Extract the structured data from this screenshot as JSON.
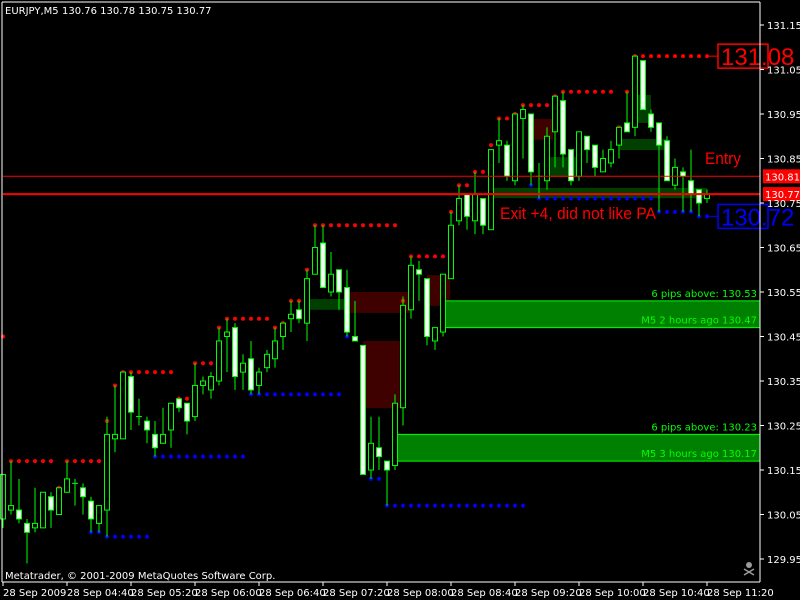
{
  "header": {
    "symbol": "EURJPY,M5",
    "ohlc": "130.76 130.78 130.75 130.77"
  },
  "footer": {
    "copyright": "Metatrader, © 2001-2009 MetaQuotes Software Corp."
  },
  "annotations": {
    "entry": "Entry",
    "exit": "Exit +4, did not like PA"
  },
  "colors": {
    "background": "#000000",
    "candle_outline": "#00ff00",
    "bear_fill": "#ffffff",
    "bull_fill": "#000000",
    "resistance": "#ff0000",
    "support": "#0000ff",
    "zone_dark_green": "#003f00",
    "zone_dark_red": "#3f0000",
    "zone_green": "#008000",
    "zone_green_border": "#00ff00",
    "price_line": "#ff0000"
  },
  "icons": {
    "skull": "skull-crossbones-icon"
  },
  "chart_data": {
    "type": "candlestick",
    "symbol": "EURJPY",
    "timeframe": "M5",
    "ylim": [
      129.92,
      131.2
    ],
    "y_ticks": [
      "131.15",
      "131.05",
      "130.95",
      "130.85",
      "130.75",
      "130.65",
      "130.55",
      "130.45",
      "130.35",
      "130.25",
      "130.15",
      "130.05",
      "129.95"
    ],
    "x_ticks": [
      {
        "bar": 0,
        "label": "28 Sep 2009"
      },
      {
        "bar": 8,
        "label": "28 Sep 04:40"
      },
      {
        "bar": 16,
        "label": "28 Sep 05:20"
      },
      {
        "bar": 24,
        "label": "28 Sep 06:00"
      },
      {
        "bar": 32,
        "label": "28 Sep 06:40"
      },
      {
        "bar": 40,
        "label": "28 Sep 07:20"
      },
      {
        "bar": 48,
        "label": "28 Sep 08:00"
      },
      {
        "bar": 56,
        "label": "28 Sep 08:40"
      },
      {
        "bar": 64,
        "label": "28 Sep 09:20"
      },
      {
        "bar": 72,
        "label": "28 Sep 10:00"
      },
      {
        "bar": 80,
        "label": "28 Sep 10:40"
      },
      {
        "bar": 88,
        "label": "28 Sep 11:20"
      }
    ],
    "candles_columns": [
      "time",
      "open",
      "high",
      "low",
      "close"
    ],
    "candles": [
      [
        "04:00",
        130.04,
        130.14,
        130.02,
        130.14
      ],
      [
        "04:05",
        130.06,
        130.17,
        130.05,
        130.07
      ],
      [
        "04:10",
        130.06,
        130.13,
        130.03,
        130.04
      ],
      [
        "04:15",
        130.03,
        130.04,
        129.94,
        130.01
      ],
      [
        "04:20",
        130.02,
        130.11,
        130.01,
        130.03
      ],
      [
        "04:25",
        130.02,
        130.1,
        130.02,
        130.1
      ],
      [
        "04:30",
        130.09,
        130.1,
        130.02,
        130.06
      ],
      [
        "04:35",
        130.05,
        130.11,
        130.05,
        130.11
      ],
      [
        "04:40",
        130.1,
        130.17,
        130.1,
        130.13
      ],
      [
        "04:45",
        130.12,
        130.13,
        130.07,
        130.12
      ],
      [
        "04:50",
        130.11,
        130.12,
        130.05,
        130.09
      ],
      [
        "04:55",
        130.08,
        130.09,
        130.01,
        130.04
      ],
      [
        "05:00",
        130.03,
        130.07,
        130.01,
        130.07
      ],
      [
        "05:05",
        130.06,
        130.27,
        130.0,
        130.23
      ],
      [
        "05:10",
        130.22,
        130.34,
        130.19,
        130.23
      ],
      [
        "05:15",
        130.22,
        130.37,
        130.22,
        130.37
      ],
      [
        "05:20",
        130.36,
        130.37,
        130.24,
        130.28
      ],
      [
        "05:25",
        130.27,
        130.31,
        130.25,
        130.27
      ],
      [
        "05:30",
        130.26,
        130.27,
        130.21,
        130.24
      ],
      [
        "05:35",
        130.23,
        130.26,
        130.18,
        130.2
      ],
      [
        "05:40",
        130.21,
        130.29,
        130.21,
        130.23
      ],
      [
        "05:45",
        130.24,
        130.3,
        130.2,
        130.3
      ],
      [
        "05:50",
        130.31,
        130.31,
        130.28,
        130.29
      ],
      [
        "05:55",
        130.3,
        130.3,
        130.23,
        130.26
      ],
      [
        "06:00",
        130.27,
        130.39,
        130.26,
        130.34
      ],
      [
        "06:05",
        130.34,
        130.36,
        130.32,
        130.35
      ],
      [
        "06:10",
        130.33,
        130.37,
        130.31,
        130.36
      ],
      [
        "06:15",
        130.35,
        130.47,
        130.34,
        130.44
      ],
      [
        "06:20",
        130.45,
        130.49,
        130.37,
        130.46
      ],
      [
        "06:25",
        130.47,
        130.48,
        130.33,
        130.36
      ],
      [
        "06:30",
        130.37,
        130.41,
        130.33,
        130.39
      ],
      [
        "06:35",
        130.4,
        130.44,
        130.32,
        130.33
      ],
      [
        "06:40",
        130.34,
        130.38,
        130.32,
        130.37
      ],
      [
        "06:45",
        130.38,
        130.42,
        130.37,
        130.41
      ],
      [
        "06:50",
        130.4,
        130.47,
        130.38,
        130.44
      ],
      [
        "06:55",
        130.45,
        130.48,
        130.42,
        130.48
      ],
      [
        "07:00",
        130.49,
        130.53,
        130.46,
        130.5
      ],
      [
        "07:05",
        130.51,
        130.53,
        130.48,
        130.49
      ],
      [
        "07:10",
        130.48,
        130.6,
        130.44,
        130.58
      ],
      [
        "07:15",
        130.59,
        130.7,
        130.59,
        130.65
      ],
      [
        "07:20",
        130.66,
        130.7,
        130.56,
        130.56
      ],
      [
        "07:25",
        130.55,
        130.64,
        130.54,
        130.59
      ],
      [
        "07:30",
        130.6,
        130.6,
        130.51,
        130.55
      ],
      [
        "07:35",
        130.56,
        130.6,
        130.45,
        130.46
      ],
      [
        "07:40",
        130.45,
        130.53,
        130.44,
        130.44
      ],
      [
        "07:45",
        130.43,
        130.43,
        130.14,
        130.14
      ],
      [
        "07:50",
        130.15,
        130.27,
        130.13,
        130.21
      ],
      [
        "07:55",
        130.2,
        130.27,
        130.15,
        130.18
      ],
      [
        "08:00",
        130.17,
        130.17,
        130.07,
        130.15
      ],
      [
        "08:05",
        130.16,
        130.32,
        130.15,
        130.3
      ],
      [
        "08:10",
        130.29,
        130.54,
        130.25,
        130.52
      ],
      [
        "08:15",
        130.51,
        130.63,
        130.49,
        130.61
      ],
      [
        "08:20",
        130.6,
        130.62,
        130.53,
        130.59
      ],
      [
        "08:25",
        130.58,
        130.58,
        130.43,
        130.45
      ],
      [
        "08:30",
        130.44,
        130.47,
        130.42,
        130.47
      ],
      [
        "08:35",
        130.46,
        130.59,
        130.45,
        130.59
      ],
      [
        "08:40",
        130.58,
        130.73,
        130.58,
        130.7
      ],
      [
        "08:45",
        130.71,
        130.79,
        130.7,
        130.76
      ],
      [
        "08:50",
        130.77,
        130.77,
        130.69,
        130.72
      ],
      [
        "08:55",
        130.71,
        130.82,
        130.68,
        130.77
      ],
      [
        "09:00",
        130.76,
        130.76,
        130.68,
        130.7
      ],
      [
        "09:05",
        130.69,
        130.87,
        130.69,
        130.87
      ],
      [
        "09:10",
        130.88,
        130.94,
        130.84,
        130.89
      ],
      [
        "09:15",
        130.88,
        130.89,
        130.8,
        130.81
      ],
      [
        "09:20",
        130.8,
        130.95,
        130.79,
        130.95
      ],
      [
        "09:25",
        130.94,
        130.97,
        130.85,
        130.96
      ],
      [
        "09:30",
        130.95,
        130.95,
        130.79,
        130.82
      ],
      [
        "09:35",
        130.81,
        130.84,
        130.76,
        130.81
      ],
      [
        "09:40",
        130.8,
        130.92,
        130.78,
        130.9
      ],
      [
        "09:45",
        130.91,
        130.99,
        130.83,
        130.99
      ],
      [
        "09:50",
        130.98,
        131.0,
        130.83,
        130.86
      ],
      [
        "09:55",
        130.87,
        130.87,
        130.79,
        130.8
      ],
      [
        "10:00",
        130.81,
        130.91,
        130.8,
        130.91
      ],
      [
        "10:05",
        130.9,
        130.9,
        130.84,
        130.87
      ],
      [
        "10:10",
        130.88,
        130.88,
        130.81,
        130.83
      ],
      [
        "10:15",
        130.82,
        130.87,
        130.82,
        130.85
      ],
      [
        "10:20",
        130.84,
        130.89,
        130.83,
        130.87
      ],
      [
        "10:25",
        130.88,
        130.92,
        130.85,
        130.92
      ],
      [
        "10:30",
        130.93,
        131.0,
        130.91,
        130.91
      ],
      [
        "10:35",
        130.92,
        131.08,
        130.9,
        131.08
      ],
      [
        "10:40",
        131.07,
        131.07,
        130.96,
        130.96
      ],
      [
        "10:45",
        130.95,
        130.96,
        130.91,
        130.92
      ],
      [
        "10:50",
        130.93,
        130.93,
        130.73,
        130.88
      ],
      [
        "10:55",
        130.89,
        130.9,
        130.8,
        130.8
      ],
      [
        "11:00",
        130.79,
        130.85,
        130.78,
        130.83
      ],
      [
        "11:05",
        130.82,
        130.83,
        130.73,
        130.81
      ],
      [
        "11:10",
        130.8,
        130.87,
        130.73,
        130.77
      ],
      [
        "11:15",
        130.78,
        130.78,
        130.72,
        130.75
      ],
      [
        "11:20",
        130.76,
        130.78,
        130.75,
        130.77
      ]
    ],
    "resistance_levels": [
      {
        "from": 0,
        "to": 0,
        "price": 130.45
      },
      {
        "from": 1,
        "to": 6,
        "price": 130.17
      },
      {
        "from": 7,
        "to": 7,
        "price": 130.11
      },
      {
        "from": 8,
        "to": 12,
        "price": 130.17
      },
      {
        "from": 13,
        "to": 13,
        "price": 130.26
      },
      {
        "from": 14,
        "to": 14,
        "price": 130.34
      },
      {
        "from": 15,
        "to": 21,
        "price": 130.37
      },
      {
        "from": 22,
        "to": 23,
        "price": 130.31
      },
      {
        "from": 24,
        "to": 26,
        "price": 130.39
      },
      {
        "from": 27,
        "to": 27,
        "price": 130.47
      },
      {
        "from": 28,
        "to": 33,
        "price": 130.49
      },
      {
        "from": 34,
        "to": 34,
        "price": 130.47
      },
      {
        "from": 35,
        "to": 35,
        "price": 130.48
      },
      {
        "from": 36,
        "to": 37,
        "price": 130.53
      },
      {
        "from": 38,
        "to": 38,
        "price": 130.6
      },
      {
        "from": 39,
        "to": 49,
        "price": 130.7
      },
      {
        "from": 50,
        "to": 50,
        "price": 130.53
      },
      {
        "from": 51,
        "to": 55,
        "price": 130.63
      },
      {
        "from": 56,
        "to": 56,
        "price": 130.73
      },
      {
        "from": 57,
        "to": 58,
        "price": 130.79
      },
      {
        "from": 59,
        "to": 60,
        "price": 130.82
      },
      {
        "from": 61,
        "to": 61,
        "price": 130.88
      },
      {
        "from": 62,
        "to": 63,
        "price": 130.94
      },
      {
        "from": 64,
        "to": 64,
        "price": 130.95
      },
      {
        "from": 65,
        "to": 68,
        "price": 130.97
      },
      {
        "from": 69,
        "to": 69,
        "price": 130.99
      },
      {
        "from": 70,
        "to": 76,
        "price": 131.0
      },
      {
        "from": 77,
        "to": 77,
        "price": 130.92
      },
      {
        "from": 78,
        "to": 78,
        "price": 131.0
      },
      {
        "from": 79,
        "to": 88,
        "price": 131.08
      }
    ],
    "support_levels": [
      {
        "from": 11,
        "to": 12,
        "price": 130.01
      },
      {
        "from": 13,
        "to": 18,
        "price": 130.0
      },
      {
        "from": 19,
        "to": 30,
        "price": 130.18
      },
      {
        "from": 31,
        "to": 42,
        "price": 130.32
      },
      {
        "from": 43,
        "to": 43,
        "price": 130.45
      },
      {
        "from": 46,
        "to": 47,
        "price": 130.13
      },
      {
        "from": 48,
        "to": 65,
        "price": 130.07
      },
      {
        "from": 66,
        "to": 66,
        "price": 130.79
      },
      {
        "from": 67,
        "to": 81,
        "price": 130.76
      },
      {
        "from": 82,
        "to": 86,
        "price": 130.73
      },
      {
        "from": 87,
        "to": 88,
        "price": 130.72
      }
    ],
    "resistance_label": "131.08",
    "support_label": "130.72",
    "zones": [
      {
        "kind": "dark_green",
        "from": 38.25,
        "to": 42.75,
        "top": 130.534,
        "bottom": 130.51
      },
      {
        "kind": "dark_red",
        "from": 43.4,
        "to": 50.9,
        "top": 130.55,
        "bottom": 130.503
      },
      {
        "kind": "dark_red",
        "from": 53,
        "to": 55.9,
        "top": 130.588,
        "bottom": 130.519
      },
      {
        "kind": "dark_red",
        "from": 45,
        "to": 49.6,
        "top": 130.44,
        "bottom": 130.289
      },
      {
        "kind": "dark_red",
        "from": 66.1,
        "to": 68.75,
        "top": 130.939,
        "bottom": 130.892
      },
      {
        "kind": "dark_green",
        "from": 68.4,
        "to": 72.1,
        "top": 130.853,
        "bottom": 130.808
      },
      {
        "kind": "dark_green",
        "from": 61.25,
        "to": 88,
        "top": 130.784,
        "bottom": 130.761
      },
      {
        "kind": "dark_green",
        "from": 77.1,
        "to": 83,
        "top": 130.894,
        "bottom": 130.869
      },
      {
        "kind": "dark_green",
        "from": 79.25,
        "to": 81,
        "top": 130.993,
        "bottom": 130.93
      },
      {
        "kind": "green",
        "from": 49.25,
        "to": "right",
        "top": 130.23,
        "bottom": 130.17,
        "label_top": "6 pips above: 130.23",
        "label_bottom": "M5 3 hours ago 130.17"
      },
      {
        "kind": "green",
        "from": 55.25,
        "to": "right",
        "top": 130.53,
        "bottom": 130.47,
        "label_top": "6 pips above: 130.53",
        "label_bottom": "M5 2 hours ago 130.47"
      }
    ],
    "price_lines": [
      {
        "price": 130.81,
        "label": "130.81"
      },
      {
        "price": 130.77,
        "label": "130.77"
      }
    ]
  }
}
